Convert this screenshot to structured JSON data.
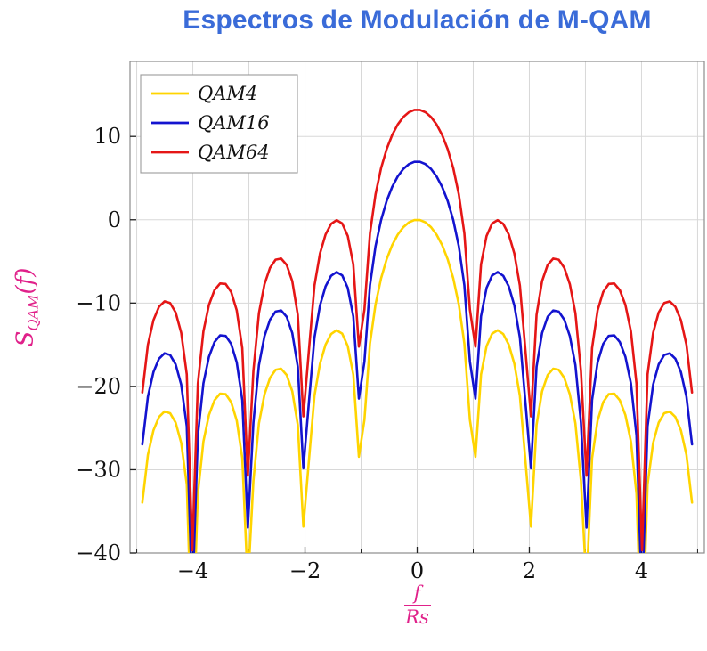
{
  "page": {
    "background": "#ffffff"
  },
  "chart_data": {
    "type": "line",
    "title": "Espectros de Modulación de M-QAM",
    "title_color": "#3a6bd8",
    "axis_label_color": "#e0218a",
    "xlabel": {
      "numerator": "f",
      "denominator": "Rs"
    },
    "ylabel": {
      "base": "S",
      "subscript": "QAM",
      "argument": "(f)"
    },
    "xlim": [
      -5.12,
      5.12
    ],
    "ylim": [
      -40,
      19
    ],
    "data_domain": [
      -4.9,
      4.9
    ],
    "samples_per_series": 100,
    "grid": {
      "show": true,
      "x_step": 1,
      "color": "#d8d8d8"
    },
    "frame_color": "#8c8c8c",
    "tick_color": "#222222",
    "tick_label_color": "#111111",
    "x_ticks": [
      {
        "value": -4,
        "label": "−4"
      },
      {
        "value": -2,
        "label": "−2"
      },
      {
        "value": 0,
        "label": "0"
      },
      {
        "value": 2,
        "label": "2"
      },
      {
        "value": 4,
        "label": "4"
      }
    ],
    "y_ticks": [
      {
        "value": 10,
        "label": "10"
      },
      {
        "value": 0,
        "label": "0"
      },
      {
        "value": -10,
        "label": "−10"
      },
      {
        "value": -20,
        "label": "−20"
      },
      {
        "value": -30,
        "label": "−30"
      },
      {
        "value": -40,
        "label": "−40"
      }
    ],
    "legend": {
      "position": "top-left",
      "border_color": "#9a9a9a",
      "background": "#ffffff",
      "text_color": "#111111"
    },
    "series": [
      {
        "name": "QAM4",
        "color": "#ffd400",
        "peak_db": 0,
        "model": "peak_db + 20*log10(|sinc(f/Rs)|)"
      },
      {
        "name": "QAM16",
        "color": "#1313cf",
        "peak_db": 6.99,
        "model": "peak_db + 20*log10(|sinc(f/Rs)|)"
      },
      {
        "name": "QAM64",
        "color": "#e51616",
        "peak_db": 13.22,
        "model": "peak_db + 20*log10(|sinc(f/Rs)|)"
      }
    ],
    "annotations": {
      "nulls_at": [
        -4,
        -3,
        -2,
        -1,
        1,
        2,
        3,
        4
      ],
      "peak_values_db": {
        "QAM4": 0,
        "QAM16": 7,
        "QAM64": 13.2
      }
    }
  }
}
